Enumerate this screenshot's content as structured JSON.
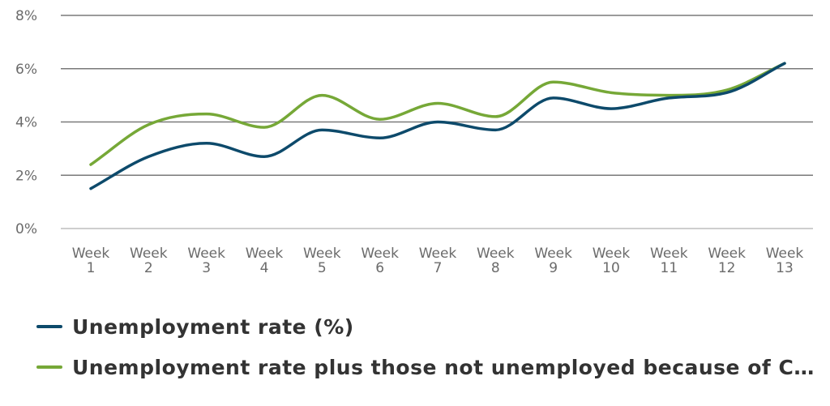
{
  "chart_data": {
    "type": "line",
    "categories": [
      "Week 1",
      "Week 2",
      "Week 3",
      "Week 4",
      "Week 5",
      "Week 6",
      "Week 7",
      "Week 8",
      "Week 9",
      "Week 10",
      "Week 11",
      "Week 12",
      "Week 13"
    ],
    "category_lines": [
      [
        "Week",
        "1"
      ],
      [
        "Week",
        "2"
      ],
      [
        "Week",
        "3"
      ],
      [
        "Week",
        "4"
      ],
      [
        "Week",
        "5"
      ],
      [
        "Week",
        "6"
      ],
      [
        "Week",
        "7"
      ],
      [
        "Week",
        "8"
      ],
      [
        "Week",
        "9"
      ],
      [
        "Week",
        "10"
      ],
      [
        "Week",
        "11"
      ],
      [
        "Week",
        "12"
      ],
      [
        "Week",
        "13"
      ]
    ],
    "series": [
      {
        "name": "Unemployment rate (%)",
        "color": "#0d4a6b",
        "values": [
          1.5,
          2.7,
          3.2,
          2.7,
          3.7,
          3.4,
          4.0,
          3.7,
          4.9,
          4.5,
          4.9,
          5.1,
          6.2
        ]
      },
      {
        "name": "Unemployment rate plus those not unemployed because of C…",
        "color": "#76a837",
        "values": [
          2.4,
          3.9,
          4.3,
          3.8,
          5.0,
          4.1,
          4.7,
          4.2,
          5.5,
          5.1,
          5.0,
          5.2,
          6.2
        ]
      }
    ],
    "y_ticks": [
      "0%",
      "2%",
      "4%",
      "6%",
      "8%"
    ],
    "y_tick_values": [
      0,
      2,
      4,
      6,
      8
    ],
    "ylim": [
      0,
      8
    ],
    "grid": true,
    "title": "",
    "xlabel": "",
    "ylabel": "",
    "legend_position": "bottom-left"
  }
}
